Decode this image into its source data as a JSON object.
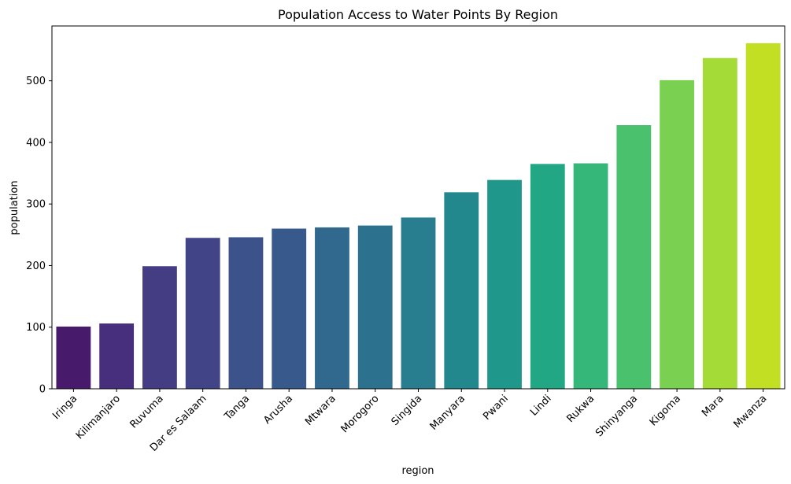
{
  "chart_data": {
    "type": "bar",
    "title": "Population Access to Water Points By Region",
    "xlabel": "region",
    "ylabel": "population",
    "categories": [
      "Iringa",
      "Kilimanjaro",
      "Ruvuma",
      "Dar es Salaam",
      "Tanga",
      "Arusha",
      "Mtwara",
      "Morogoro",
      "Singida",
      "Manyara",
      "Pwani",
      "Lindi",
      "Rukwa",
      "Shinyanga",
      "Kigoma",
      "Mara",
      "Mwanza"
    ],
    "values": [
      101,
      106,
      199,
      245,
      246,
      260,
      262,
      265,
      278,
      319,
      339,
      365,
      366,
      428,
      501,
      537,
      561
    ],
    "ylim": [
      0,
      589
    ],
    "yticks": [
      0,
      100,
      200,
      300,
      400,
      500
    ],
    "colors": [
      "#481a6c",
      "#472f7d",
      "#443d84",
      "#414487",
      "#3b528b",
      "#38598c",
      "#31688e",
      "#2c728e",
      "#287d8e",
      "#23888e",
      "#1f988b",
      "#22a785",
      "#35b779",
      "#4ac16d",
      "#7ad151",
      "#a5db36",
      "#c2df23"
    ],
    "grid": false,
    "legend": "none"
  }
}
